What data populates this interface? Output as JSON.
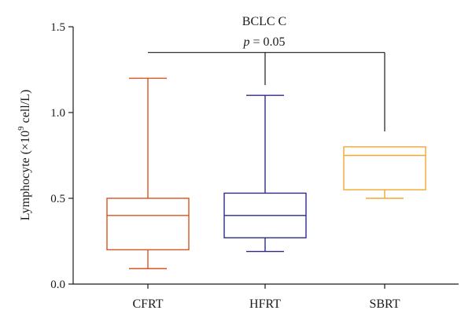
{
  "chart_data": {
    "type": "box",
    "title": "",
    "annotation": {
      "group": "BCLC C",
      "p_symbol": "p",
      "p_rest": " = 0.05"
    },
    "ylabel": {
      "prefix": "Lymphocyte (×10",
      "exponent": "9",
      "suffix": " cell/L)"
    },
    "xlabel": "",
    "ylim": [
      0,
      1.5
    ],
    "yticks": [
      0.0,
      0.5,
      1.0,
      1.5
    ],
    "ytick_labels": [
      "0.0",
      "0.5",
      "1.0",
      "1.5"
    ],
    "grid": false,
    "categories": [
      "CFRT",
      "HFRT",
      "SBRT"
    ],
    "boxes": [
      {
        "category": "CFRT",
        "min": 0.09,
        "q1": 0.2,
        "median": 0.4,
        "q3": 0.5,
        "max": 1.2,
        "color": "#d9531e"
      },
      {
        "category": "HFRT",
        "min": 0.19,
        "q1": 0.27,
        "median": 0.4,
        "q3": 0.53,
        "max": 1.1,
        "color": "#2e2a84"
      },
      {
        "category": "SBRT",
        "min": 0.5,
        "q1": 0.55,
        "median": 0.75,
        "q3": 0.8,
        "max": 0.8,
        "color": "#f0a830"
      }
    ],
    "bracket": {
      "connects": [
        "CFRT",
        "HFRT",
        "SBRT"
      ],
      "level": 1.35,
      "leg_ends": [
        1.35,
        1.16,
        0.89
      ],
      "color": "#1a1a1a"
    }
  }
}
